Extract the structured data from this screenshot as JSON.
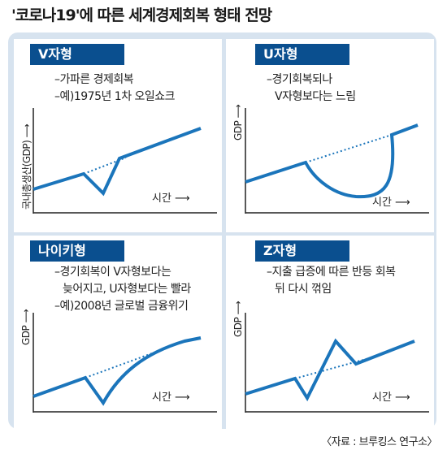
{
  "title": "'코로나19'에 따른 세계경제회복 형태 전망",
  "source": "〈자료 : 브루킹스 연구소〉",
  "colors": {
    "accent": "#0a4f8f",
    "line": "#1b75bb",
    "frame": "#d7e3ef"
  },
  "panels": [
    {
      "badge": "V자형",
      "desc": [
        "–가파른 경제회복",
        "–예)1975년 1차 오일쇼크"
      ],
      "ylabel": "국내총생산(GDP)",
      "xlabel": "시간 ⟶"
    },
    {
      "badge": "U자형",
      "desc": [
        "–경기회복되나",
        "V자형보다는 느림"
      ],
      "ylabel": "GDP ⟶",
      "xlabel": "시간 ⟶"
    },
    {
      "badge": "나이키형",
      "desc": [
        "–경기회복이 V자형보다는",
        "늦어지고, U자형보다는 빨라",
        "–예)2008년 글로벌 금융위기"
      ],
      "ylabel": "GDP ⟶",
      "xlabel": "시간 ⟶"
    },
    {
      "badge": "Z자형",
      "desc": [
        "–지출 급증에 따른 반등 회복",
        "뒤 다시 꺾임"
      ],
      "ylabel": "GDP ⟶",
      "xlabel": "시간 ⟶"
    }
  ],
  "ylabel_arrow": "⟶"
}
